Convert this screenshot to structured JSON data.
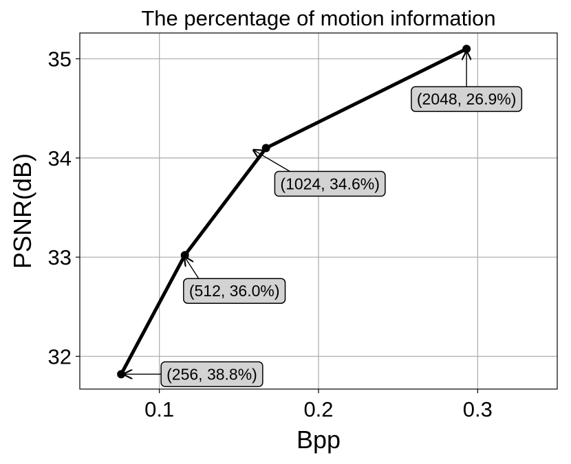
{
  "chart_data": {
    "type": "line",
    "title": "The percentage of motion information",
    "xlabel": "Bpp",
    "ylabel": "PSNR(dB)",
    "xlim": [
      0.05,
      0.35
    ],
    "ylim": [
      31.67,
      35.26
    ],
    "xticks": [
      0.1,
      0.2,
      0.3
    ],
    "yticks": [
      32,
      33,
      34,
      35
    ],
    "grid": true,
    "series": [
      {
        "x": [
          0.076,
          0.116,
          0.167,
          0.293
        ],
        "y": [
          31.82,
          33.02,
          34.1,
          35.1
        ],
        "color": "#000000"
      }
    ],
    "annotations": [
      {
        "x": 0.076,
        "y": 31.82,
        "text": "(256, 38.8%)"
      },
      {
        "x": 0.116,
        "y": 33.02,
        "text": "(512, 36.0%)"
      },
      {
        "x": 0.167,
        "y": 34.1,
        "text": "(1024, 34.6%)"
      },
      {
        "x": 0.293,
        "y": 35.1,
        "text": "(2048, 26.9%)"
      }
    ]
  }
}
